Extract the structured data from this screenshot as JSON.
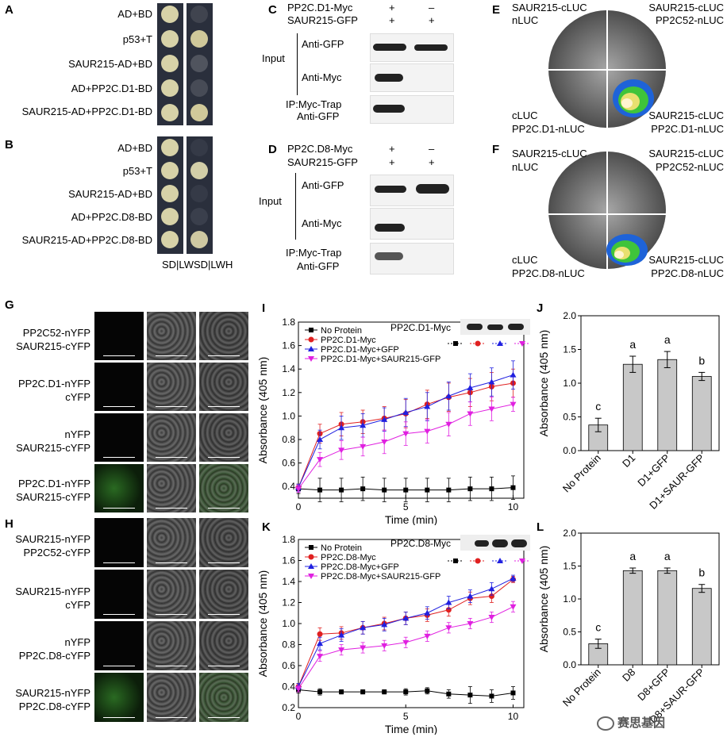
{
  "panels": {
    "A": "A",
    "B": "B",
    "C": "C",
    "D": "D",
    "E": "E",
    "F": "F",
    "G": "G",
    "H": "H",
    "I": "I",
    "J": "J",
    "K": "K",
    "L": "L"
  },
  "panelA": {
    "rows": [
      "AD+BD",
      "p53+T",
      "SAUR215-AD+BD",
      "AD+PP2C.D1-BD",
      "SAUR215-AD+PP2C.D1-BD"
    ]
  },
  "panelB": {
    "rows": [
      "AD+BD",
      "p53+T",
      "SAUR215-AD+BD",
      "AD+PP2C.D8-BD",
      "SAUR215-AD+PP2C.D8-BD"
    ],
    "media": [
      "SD|LW",
      "SD|LWH"
    ]
  },
  "panelC": {
    "row1": "PP2C.D1-Myc",
    "row2": "SAUR215-GFP",
    "signs1": [
      "+",
      "–"
    ],
    "signs2": [
      "+",
      "+"
    ],
    "input": "Input",
    "antiGFP": "Anti-GFP",
    "antiMyc": "Anti-Myc",
    "ip1": "IP:Myc-Trap",
    "ip2": "Anti-GFP"
  },
  "panelD": {
    "row1": "PP2C.D8-Myc",
    "row2": "SAUR215-GFP",
    "signs1": [
      "+",
      "–"
    ],
    "signs2": [
      "+",
      "+"
    ],
    "input": "Input",
    "antiGFP": "Anti-GFP",
    "antiMyc": "Anti-Myc",
    "ip1": "IP:Myc-Trap",
    "ip2": "Anti-GFP"
  },
  "panelE": {
    "tl1": "SAUR215-cLUC",
    "tl2": "nLUC",
    "tr1": "SAUR215-cLUC",
    "tr2": "PP2C52-nLUC",
    "bl1": "cLUC",
    "bl2": "PP2C.D1-nLUC",
    "br1": "SAUR215-cLUC",
    "br2": "PP2C.D1-nLUC"
  },
  "panelF": {
    "tl1": "SAUR215-cLUC",
    "tl2": "nLUC",
    "tr1": "SAUR215-cLUC",
    "tr2": "PP2C52-nLUC",
    "bl1": "cLUC",
    "bl2": "PP2C.D8-nLUC",
    "br1": "SAUR215-cLUC",
    "br2": "PP2C.D8-nLUC"
  },
  "panelG": {
    "rows": [
      [
        "PP2C52-nYFP",
        "SAUR215-cYFP"
      ],
      [
        "PP2C.D1-nYFP",
        "cYFP"
      ],
      [
        "nYFP",
        "SAUR215-cYFP"
      ],
      [
        "PP2C.D1-nYFP",
        "SAUR215-cYFP"
      ]
    ]
  },
  "panelH": {
    "rows": [
      [
        "SAUR215-nYFP",
        "PP2C52-cYFP"
      ],
      [
        "SAUR215-nYFP",
        "cYFP"
      ],
      [
        "nYFP",
        "PP2C.D8-cYFP"
      ],
      [
        "SAUR215-nYFP",
        "PP2C.D8-cYFP"
      ]
    ]
  },
  "panelI_blot": "PP2C.D1-Myc",
  "panelK_blot": "PP2C.D8-Myc",
  "watermark": "赛思基因",
  "chart_data": [
    {
      "id": "I",
      "type": "line",
      "xlabel": "Time (min)",
      "ylabel": "Absorbance (405 nm)",
      "xlim": [
        0,
        10.5
      ],
      "ylim": [
        0.3,
        1.8
      ],
      "xticks": [
        0,
        5,
        10
      ],
      "yticks": [
        0.4,
        0.6,
        0.8,
        1.0,
        1.2,
        1.4,
        1.6,
        1.8
      ],
      "ytick_labels": [
        "0.4",
        "0.6",
        "0.8",
        "1.0",
        "1.2",
        "1.4",
        "1.6",
        "1.8"
      ],
      "x": [
        0,
        1,
        2,
        3,
        4,
        5,
        6,
        7,
        8,
        9,
        10
      ],
      "series": [
        {
          "name": "No Protein",
          "color": "#000000",
          "marker": "square",
          "values": [
            0.38,
            0.37,
            0.37,
            0.38,
            0.37,
            0.37,
            0.37,
            0.37,
            0.38,
            0.38,
            0.39
          ],
          "err": [
            0.04,
            0.1,
            0.1,
            0.1,
            0.1,
            0.1,
            0.1,
            0.1,
            0.1,
            0.1,
            0.1
          ]
        },
        {
          "name": "PP2C.D1-Myc",
          "color": "#e02020",
          "marker": "circle",
          "values": [
            0.39,
            0.85,
            0.93,
            0.95,
            0.98,
            1.02,
            1.1,
            1.16,
            1.2,
            1.25,
            1.28
          ],
          "err": [
            0.03,
            0.08,
            0.1,
            0.1,
            0.1,
            0.12,
            0.12,
            0.12,
            0.12,
            0.12,
            0.12
          ]
        },
        {
          "name": "PP2C.D1-Myc+GFP",
          "color": "#2020e0",
          "marker": "triangle",
          "values": [
            0.39,
            0.8,
            0.9,
            0.92,
            0.97,
            1.03,
            1.08,
            1.17,
            1.24,
            1.29,
            1.35
          ],
          "err": [
            0.03,
            0.08,
            0.1,
            0.1,
            0.1,
            0.12,
            0.12,
            0.12,
            0.12,
            0.12,
            0.12
          ]
        },
        {
          "name": "PP2C.D1-Myc+SAUR215-GFP",
          "color": "#e020e0",
          "marker": "invtriangle",
          "values": [
            0.38,
            0.63,
            0.71,
            0.74,
            0.78,
            0.85,
            0.87,
            0.93,
            1.02,
            1.06,
            1.1
          ],
          "err": [
            0.03,
            0.06,
            0.08,
            0.08,
            0.1,
            0.1,
            0.1,
            0.1,
            0.1,
            0.1,
            0.06
          ]
        }
      ]
    },
    {
      "id": "K",
      "type": "line",
      "xlabel": "Time (min)",
      "ylabel": "Absorbance (405 nm)",
      "xlim": [
        0,
        10.5
      ],
      "ylim": [
        0.2,
        1.8
      ],
      "xticks": [
        0,
        5,
        10
      ],
      "yticks": [
        0.2,
        0.4,
        0.6,
        0.8,
        1.0,
        1.2,
        1.4,
        1.6,
        1.8
      ],
      "ytick_labels": [
        "0.2",
        "0.4",
        "0.6",
        "0.8",
        "1.0",
        "1.2",
        "1.4",
        "1.6",
        "1.8"
      ],
      "x": [
        0,
        1,
        2,
        3,
        4,
        5,
        6,
        7,
        8,
        9,
        10
      ],
      "series": [
        {
          "name": "No Protein",
          "color": "#000000",
          "marker": "square",
          "values": [
            0.37,
            0.35,
            0.35,
            0.35,
            0.35,
            0.35,
            0.36,
            0.33,
            0.32,
            0.31,
            0.34
          ],
          "err": [
            0.03,
            0.03,
            0.02,
            0.02,
            0.02,
            0.03,
            0.03,
            0.04,
            0.08,
            0.06,
            0.06
          ]
        },
        {
          "name": "PP2C.D8-Myc",
          "color": "#e02020",
          "marker": "circle",
          "values": [
            0.4,
            0.9,
            0.91,
            0.96,
            1.0,
            1.05,
            1.08,
            1.13,
            1.24,
            1.26,
            1.42
          ],
          "err": [
            0.03,
            0.06,
            0.06,
            0.06,
            0.06,
            0.06,
            0.06,
            0.06,
            0.06,
            0.06,
            0.03
          ]
        },
        {
          "name": "PP2C.D8-Myc+GFP",
          "color": "#2020e0",
          "marker": "triangle",
          "values": [
            0.4,
            0.81,
            0.89,
            0.96,
            0.99,
            1.05,
            1.1,
            1.2,
            1.26,
            1.33,
            1.43
          ],
          "err": [
            0.03,
            0.06,
            0.06,
            0.06,
            0.06,
            0.06,
            0.06,
            0.06,
            0.06,
            0.06,
            0.03
          ]
        },
        {
          "name": "PP2C.D8-Myc+SAUR215-GFP",
          "color": "#e020e0",
          "marker": "invtriangle",
          "values": [
            0.38,
            0.69,
            0.75,
            0.77,
            0.79,
            0.82,
            0.88,
            0.96,
            1.0,
            1.06,
            1.16
          ],
          "err": [
            0.03,
            0.05,
            0.05,
            0.05,
            0.05,
            0.05,
            0.05,
            0.05,
            0.05,
            0.05,
            0.05
          ]
        }
      ]
    },
    {
      "id": "J",
      "type": "bar",
      "ylabel": "Absorbance (405 nm)",
      "ylim": [
        0,
        2.0
      ],
      "yticks": [
        0.0,
        0.5,
        1.0,
        1.5,
        2.0
      ],
      "ytick_labels": [
        "0.0",
        "0.5",
        "1.0",
        "1.5",
        "2.0"
      ],
      "categories": [
        "No Protein",
        "D1",
        "D1+GFP",
        "D1+SAUR-GFP"
      ],
      "values": [
        0.38,
        1.28,
        1.35,
        1.1
      ],
      "err": [
        0.1,
        0.12,
        0.12,
        0.06
      ],
      "letters": [
        "c",
        "a",
        "a",
        "b"
      ]
    },
    {
      "id": "L",
      "type": "bar",
      "ylabel": "Absorbance (405 nm)",
      "ylim": [
        0,
        2.0
      ],
      "yticks": [
        0.0,
        0.5,
        1.0,
        1.5,
        2.0
      ],
      "ytick_labels": [
        "0.0",
        "0.5",
        "1.0",
        "1.5",
        "2.0"
      ],
      "categories": [
        "No Protein",
        "D8",
        "D8+GFP",
        "D8+SAUR-GFP"
      ],
      "values": [
        0.32,
        1.43,
        1.43,
        1.16
      ],
      "err": [
        0.07,
        0.04,
        0.04,
        0.06
      ],
      "letters": [
        "c",
        "a",
        "a",
        "b"
      ]
    }
  ]
}
